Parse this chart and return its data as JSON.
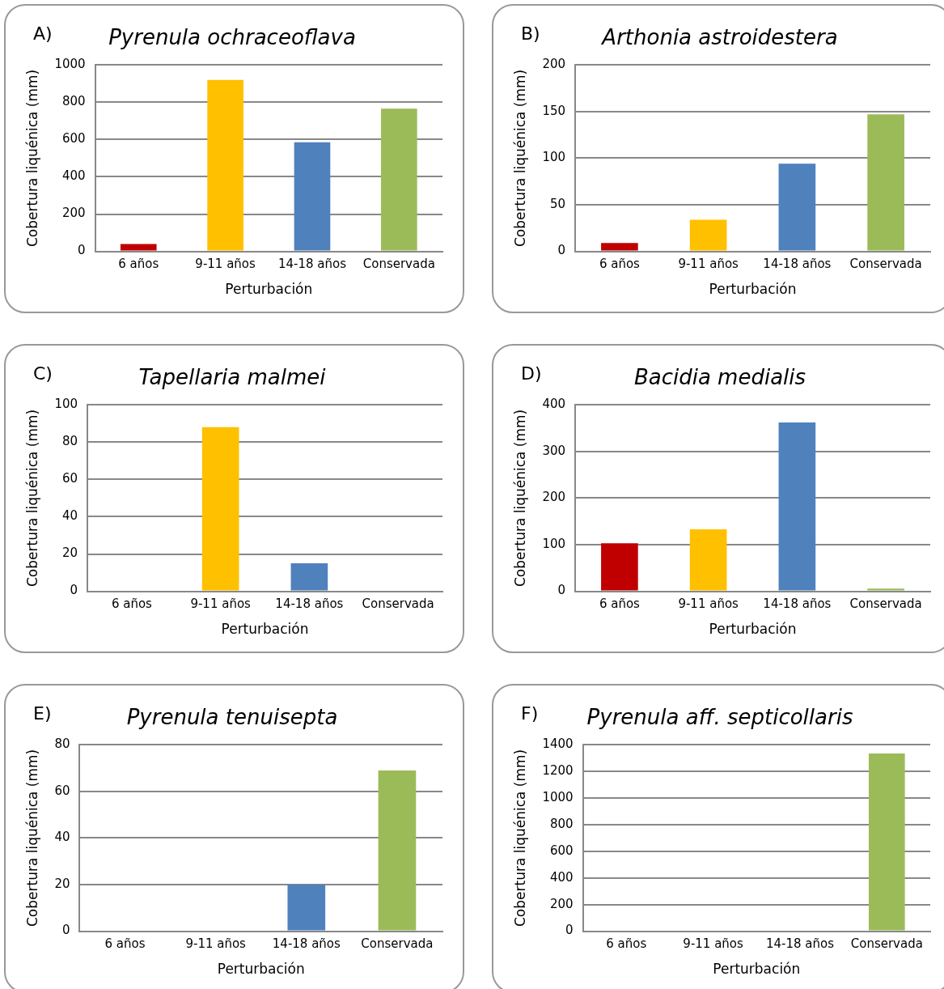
{
  "chart_data": [
    {
      "type": "bar",
      "title": "Pyrenula ochraceoflava",
      "annotations": [
        "A)"
      ],
      "xlabel": "Perturbación",
      "ylabel": "Cobertura liquénica (mm)",
      "categories": [
        "6 años",
        "9-11 años",
        "14-18 años",
        "Conservada"
      ],
      "values": [
        40,
        920,
        585,
        765
      ],
      "colors": [
        "#c00000",
        "#ffc000",
        "#4f81bd",
        "#9bbb59"
      ],
      "ylim": [
        0,
        1000
      ],
      "yticks": [
        0,
        200,
        400,
        600,
        800,
        1000
      ],
      "grid": "y",
      "legend": false
    },
    {
      "type": "bar",
      "title": "Arthonia astroidestera",
      "annotations": [
        "B)"
      ],
      "xlabel": "Perturbación",
      "ylabel": "Cobertura liquénica (mm)",
      "categories": [
        "6 años",
        "9-11 años",
        "14-18 años",
        "Conservada"
      ],
      "values": [
        9,
        34,
        94,
        147
      ],
      "colors": [
        "#c00000",
        "#ffc000",
        "#4f81bd",
        "#9bbb59"
      ],
      "ylim": [
        0,
        200
      ],
      "yticks": [
        0,
        50,
        100,
        150,
        200
      ],
      "grid": "y",
      "legend": false
    },
    {
      "type": "bar",
      "title": "Tapellaria malmei",
      "annotations": [
        "C)"
      ],
      "xlabel": "Perturbación",
      "ylabel": "Cobertura liquénica (mm)",
      "categories": [
        "6 años",
        "9-11 años",
        "14-18 años",
        "Conservada"
      ],
      "values": [
        0,
        88,
        15,
        0
      ],
      "colors": [
        "#c00000",
        "#ffc000",
        "#4f81bd",
        "#9bbb59"
      ],
      "ylim": [
        0,
        100
      ],
      "yticks": [
        0,
        20,
        40,
        60,
        80,
        100
      ],
      "grid": "y",
      "legend": false
    },
    {
      "type": "bar",
      "title": "Bacidia medialis",
      "annotations": [
        "D)"
      ],
      "xlabel": "Perturbación",
      "ylabel": "Cobertura liquénica (mm)",
      "categories": [
        "6 años",
        "9-11 años",
        "14-18 años",
        "Conservada"
      ],
      "values": [
        103,
        133,
        362,
        6
      ],
      "colors": [
        "#c00000",
        "#ffc000",
        "#4f81bd",
        "#9bbb59"
      ],
      "ylim": [
        0,
        400
      ],
      "yticks": [
        0,
        100,
        200,
        300,
        400
      ],
      "grid": "y",
      "legend": false
    },
    {
      "type": "bar",
      "title": "Pyrenula tenuisepta",
      "annotations": [
        "E)"
      ],
      "xlabel": "Perturbación",
      "ylabel": "Cobertura liquénica (mm)",
      "categories": [
        "6 años",
        "9-11 años",
        "14-18 años",
        "Conservada"
      ],
      "values": [
        0,
        0,
        20,
        69
      ],
      "colors": [
        "#c00000",
        "#ffc000",
        "#4f81bd",
        "#9bbb59"
      ],
      "ylim": [
        0,
        80
      ],
      "yticks": [
        0,
        20,
        40,
        60,
        80
      ],
      "grid": "y",
      "legend": false
    },
    {
      "type": "bar",
      "title": "Pyrenula aff. septicollaris",
      "annotations": [
        "F)"
      ],
      "xlabel": "Perturbación",
      "ylabel": "Cobertura liquénica (mm)",
      "categories": [
        "6 años",
        "9-11 años",
        "14-18 años",
        "Conservada"
      ],
      "values": [
        0,
        0,
        0,
        1335
      ],
      "colors": [
        "#c00000",
        "#ffc000",
        "#4f81bd",
        "#9bbb59"
      ],
      "ylim": [
        0,
        1400
      ],
      "yticks": [
        0,
        200,
        400,
        600,
        800,
        1000,
        1200,
        1400
      ],
      "grid": "y",
      "legend": false
    }
  ]
}
